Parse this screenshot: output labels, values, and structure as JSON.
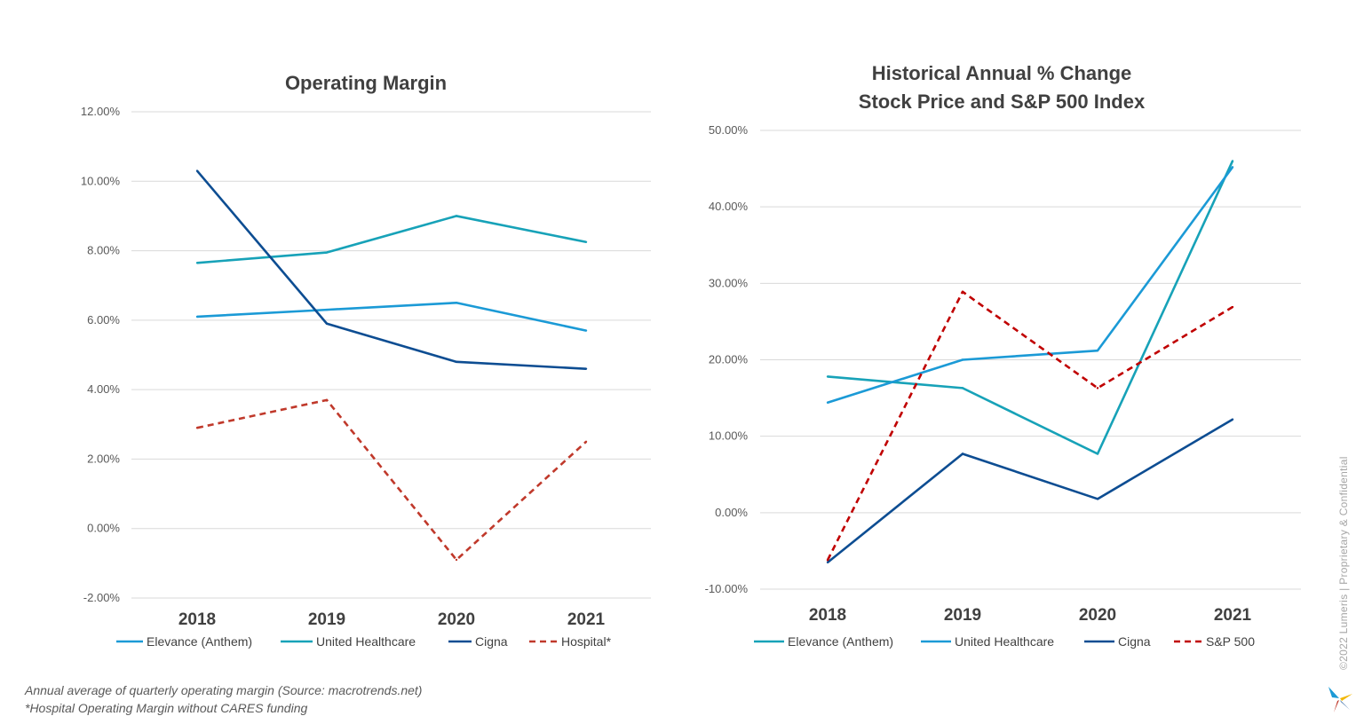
{
  "chart_data": [
    {
      "type": "line",
      "title": "Operating Margin",
      "categories": [
        "2018",
        "2019",
        "2020",
        "2021"
      ],
      "ylim": [
        -2,
        12
      ],
      "ystep": 2,
      "ytick_labels": [
        "-2.00%",
        "0.00%",
        "2.00%",
        "4.00%",
        "6.00%",
        "8.00%",
        "10.00%",
        "12.00%"
      ],
      "grid": true,
      "legend_position": "bottom",
      "series": [
        {
          "name": "Elevance (Anthem)",
          "color": "#1b9ad6",
          "dashed": false,
          "values": [
            6.1,
            6.3,
            6.5,
            5.7
          ]
        },
        {
          "name": "United Healthcare",
          "color": "#17a2b8",
          "dashed": false,
          "values": [
            7.65,
            7.95,
            9.0,
            8.25
          ]
        },
        {
          "name": "Cigna",
          "color": "#0d4d92",
          "dashed": false,
          "values": [
            10.3,
            5.9,
            4.8,
            4.6
          ]
        },
        {
          "name": "Hospital*",
          "color": "#c0392b",
          "dashed": true,
          "values": [
            2.9,
            3.7,
            -0.9,
            2.5
          ]
        }
      ]
    },
    {
      "type": "line",
      "title": "Historical Annual % Change\nStock Price and S&P 500 Index",
      "categories": [
        "2018",
        "2019",
        "2020",
        "2021"
      ],
      "ylim": [
        -10,
        50
      ],
      "ystep": 10,
      "ytick_labels": [
        "-10.00%",
        "0.00%",
        "10.00%",
        "20.00%",
        "30.00%",
        "40.00%",
        "50.00%"
      ],
      "grid": true,
      "legend_position": "bottom",
      "series": [
        {
          "name": "Elevance (Anthem)",
          "color": "#17a2b8",
          "dashed": false,
          "values": [
            17.8,
            16.3,
            7.7,
            46.0
          ]
        },
        {
          "name": "United Healthcare",
          "color": "#1b9ad6",
          "dashed": false,
          "values": [
            14.4,
            20.0,
            21.2,
            45.2
          ]
        },
        {
          "name": "Cigna",
          "color": "#0d4d92",
          "dashed": false,
          "values": [
            -6.5,
            7.7,
            1.8,
            12.2
          ]
        },
        {
          "name": "S&P 500",
          "color": "#c00000",
          "dashed": true,
          "values": [
            -6.2,
            28.9,
            16.3,
            26.9
          ]
        }
      ]
    }
  ],
  "footnotes": {
    "line1": "Annual average of quarterly operating margin (Source: macrotrends.net)",
    "line2": "*Hospital Operating Margin without CARES funding"
  },
  "sidebar_text": "©2022 Lumeris | Proprietary & Confidential",
  "logo": {
    "icon": "lumeris-logo-icon",
    "colors": [
      "#1b9ad6",
      "#f2b705",
      "#c0392b",
      "#0d4d92"
    ]
  }
}
